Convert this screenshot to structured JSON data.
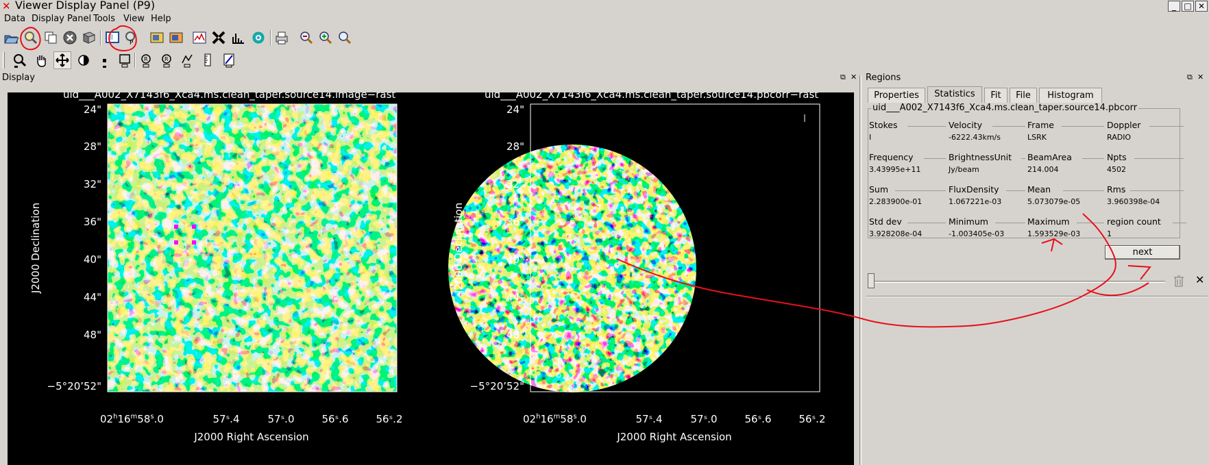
{
  "window": {
    "title": "Viewer Display Panel (P9)",
    "minimize": "_",
    "maximize": "□",
    "close": "✕"
  },
  "menu": [
    "Data",
    "Display Panel",
    "Tools",
    "View",
    "Help"
  ],
  "toolbar1": [
    "open-icon",
    "adjust-icon",
    "new-panel-icon",
    "close-panel-icon",
    "unload-icon",
    "panel-p-icon",
    "panel-settings-icon",
    "save-image-icon",
    "load-image-icon",
    "profile-icon",
    "shape-icon",
    "histogram-icon",
    "fit-icon",
    "print-icon",
    "zoom-out-icon",
    "zoom-in-icon",
    "zoom-fit-icon"
  ],
  "toolbar2": [
    "zoom-tool-icon",
    "pan-tool-icon",
    "move-tool-icon",
    "contrast-tool-icon",
    "point-tool-icon",
    "rectangle-tool-icon",
    "ellipse-tool-icon",
    "polygon-tool-icon",
    "polyline-tool-icon",
    "ruler-tool-icon",
    "positionvelocity-tool-icon"
  ],
  "display": {
    "dock_title": "Display",
    "left_image": {
      "title": "uid___A002_X7143f6_Xca4.ms.clean_taper.source14.image−rast"
    },
    "right_image": {
      "title": "uid___A002_X7143f6_Xca4.ms.clean_taper.source14.pbcorr−rast"
    },
    "y_ticks": [
      "24\"",
      "28\"",
      "32\"",
      "36\"",
      "40\"",
      "44\"",
      "48\"",
      "−5°20’52\""
    ],
    "x_ticks": [
      "57ˢ.4",
      "57ˢ.0",
      "56ˢ.6",
      "56ˢ.2"
    ],
    "x_first": {
      "h": "02",
      "hs": "h",
      "m": "16",
      "ms": "m",
      "s": "58",
      "ss": "s",
      ".0": ".0"
    },
    "xlabel": "J2000 Right Ascension",
    "ylabel": "J2000 Declination"
  },
  "regions": {
    "dock_title": "Regions",
    "tabs": [
      "Properties",
      "Statistics",
      "Fit",
      "File",
      "Histogram"
    ],
    "active_tab": "Statistics",
    "group_title": "uid___A002_X7143f6_Xca4.ms.clean_taper.source14.pbcorr",
    "stats": [
      [
        {
          "k": "Stokes",
          "v": "I"
        },
        {
          "k": "Velocity",
          "v": "-6222.43km/s"
        },
        {
          "k": "Frame",
          "v": "LSRK"
        },
        {
          "k": "Doppler",
          "v": "RADIO"
        }
      ],
      [
        {
          "k": "Frequency",
          "v": "3.43995e+11"
        },
        {
          "k": "BrightnessUnit",
          "v": "Jy/beam"
        },
        {
          "k": "BeamArea",
          "v": "214.004"
        },
        {
          "k": "Npts",
          "v": "4502"
        }
      ],
      [
        {
          "k": "Sum",
          "v": "2.283900e-01"
        },
        {
          "k": "FluxDensity",
          "v": "1.067221e-03"
        },
        {
          "k": "Mean",
          "v": "5.073079e-05"
        },
        {
          "k": "Rms",
          "v": "3.960398e-04"
        }
      ],
      [
        {
          "k": "Std dev",
          "v": "3.928208e-04"
        },
        {
          "k": "Minimum",
          "v": "-1.003405e-03"
        },
        {
          "k": "Maximum",
          "v": "1.593529e-03"
        },
        {
          "k": "region count",
          "v": "1"
        }
      ]
    ],
    "next_label": "next"
  },
  "colors": {
    "annotation": "#e8101a",
    "region_marker": "#ff00ff",
    "background": "#d6d3ce"
  }
}
